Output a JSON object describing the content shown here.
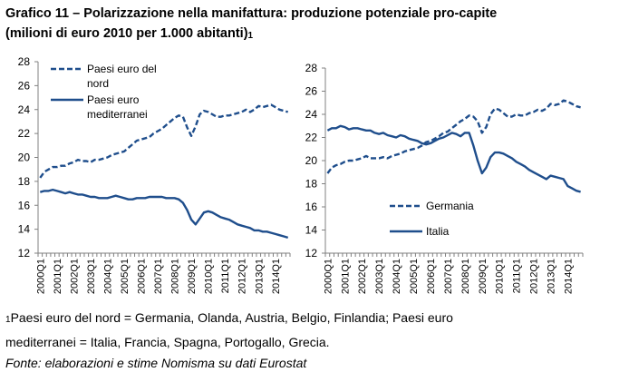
{
  "header": {
    "title_line1": "Grafico 11 – Polarizzazione nella manifattura: produzione potenziale pro-capite",
    "title_line2": "(milioni di euro 2010 per 1.000 abitanti)",
    "footnote_marker": "1"
  },
  "footnote": {
    "marker": "1",
    "line1": "Paesi euro del nord = Germania, Olanda, Austria, Belgio, Finlandia; Paesi euro",
    "line2": "mediterranei = Italia, Francia, Spagna, Portogallo, Grecia."
  },
  "source": "Fonte: elaborazioni e stime Nomisma su dati Eurostat",
  "colors": {
    "series": "#1f4e8c",
    "axis": "#808080",
    "text": "#000000"
  },
  "chart_data": [
    {
      "type": "line",
      "title": "",
      "xlabel": "",
      "ylabel": "",
      "ylim": [
        12,
        28
      ],
      "yticks": [
        12,
        14,
        16,
        18,
        20,
        22,
        24,
        26,
        28
      ],
      "grid": false,
      "legend_position": "top-left",
      "x_tick_labels": [
        "2000Q1",
        "2001Q1",
        "2002Q1",
        "2003Q1",
        "2004Q1",
        "2005Q1",
        "2006Q1",
        "2007Q1",
        "2008Q1",
        "2009Q1",
        "2010Q1",
        "2011Q1",
        "2012Q1",
        "2013Q1",
        "2014Q1"
      ],
      "x": [
        "2000Q1",
        "2000Q2",
        "2000Q3",
        "2000Q4",
        "2001Q1",
        "2001Q2",
        "2001Q3",
        "2001Q4",
        "2002Q1",
        "2002Q2",
        "2002Q3",
        "2002Q4",
        "2003Q1",
        "2003Q2",
        "2003Q3",
        "2003Q4",
        "2004Q1",
        "2004Q2",
        "2004Q3",
        "2004Q4",
        "2005Q1",
        "2005Q2",
        "2005Q3",
        "2005Q4",
        "2006Q1",
        "2006Q2",
        "2006Q3",
        "2006Q4",
        "2007Q1",
        "2007Q2",
        "2007Q3",
        "2007Q4",
        "2008Q1",
        "2008Q2",
        "2008Q3",
        "2008Q4",
        "2009Q1",
        "2009Q2",
        "2009Q3",
        "2009Q4",
        "2010Q1",
        "2010Q2",
        "2010Q3",
        "2010Q4",
        "2011Q1",
        "2011Q2",
        "2011Q3",
        "2011Q4",
        "2012Q1",
        "2012Q2",
        "2012Q3",
        "2012Q4",
        "2013Q1",
        "2013Q2",
        "2013Q3",
        "2013Q4",
        "2014Q1",
        "2014Q2",
        "2014Q3",
        "2014Q4"
      ],
      "series": [
        {
          "name": "Paesi euro del nord",
          "legend_lines": [
            "Paesi euro del",
            "nord"
          ],
          "style": "dashed",
          "values": [
            18.3,
            18.8,
            19.0,
            19.2,
            19.2,
            19.3,
            19.3,
            19.5,
            19.6,
            19.8,
            19.7,
            19.7,
            19.6,
            19.8,
            19.8,
            19.9,
            20.0,
            20.2,
            20.3,
            20.4,
            20.5,
            20.8,
            21.1,
            21.4,
            21.5,
            21.6,
            21.7,
            22.0,
            22.2,
            22.4,
            22.7,
            23.0,
            23.3,
            23.5,
            23.4,
            22.5,
            21.8,
            22.6,
            23.6,
            23.9,
            23.8,
            23.6,
            23.4,
            23.4,
            23.5,
            23.5,
            23.6,
            23.7,
            23.8,
            24.0,
            23.8,
            24.0,
            24.3,
            24.2,
            24.3,
            24.4,
            24.2,
            24.0,
            23.9,
            23.8
          ]
        },
        {
          "name": "Paesi euro mediterranei",
          "legend_lines": [
            "Paesi euro",
            "mediterranei"
          ],
          "style": "solid",
          "values": [
            17.1,
            17.2,
            17.2,
            17.3,
            17.2,
            17.1,
            17.0,
            17.1,
            17.0,
            16.9,
            16.9,
            16.8,
            16.7,
            16.7,
            16.6,
            16.6,
            16.6,
            16.7,
            16.8,
            16.7,
            16.6,
            16.5,
            16.5,
            16.6,
            16.6,
            16.6,
            16.7,
            16.7,
            16.7,
            16.7,
            16.6,
            16.6,
            16.6,
            16.5,
            16.2,
            15.6,
            14.8,
            14.4,
            14.9,
            15.4,
            15.5,
            15.4,
            15.2,
            15.0,
            14.9,
            14.8,
            14.6,
            14.4,
            14.3,
            14.2,
            14.1,
            13.9,
            13.9,
            13.8,
            13.8,
            13.7,
            13.6,
            13.5,
            13.4,
            13.3
          ]
        }
      ]
    },
    {
      "type": "line",
      "title": "",
      "xlabel": "",
      "ylabel": "",
      "ylim": [
        12,
        28
      ],
      "yticks": [
        12,
        14,
        16,
        18,
        20,
        22,
        24,
        26,
        28
      ],
      "grid": false,
      "legend_position": "bottom-right",
      "x_tick_labels": [
        "2000Q1",
        "2001Q1",
        "2002Q1",
        "2003Q1",
        "2004Q1",
        "2005Q1",
        "2006Q1",
        "2007Q1",
        "2008Q1",
        "2009Q1",
        "2010Q1",
        "2011Q1",
        "2012Q1",
        "2013Q1",
        "2014Q1"
      ],
      "x": [
        "2000Q1",
        "2000Q2",
        "2000Q3",
        "2000Q4",
        "2001Q1",
        "2001Q2",
        "2001Q3",
        "2001Q4",
        "2002Q1",
        "2002Q2",
        "2002Q3",
        "2002Q4",
        "2003Q1",
        "2003Q2",
        "2003Q3",
        "2003Q4",
        "2004Q1",
        "2004Q2",
        "2004Q3",
        "2004Q4",
        "2005Q1",
        "2005Q2",
        "2005Q3",
        "2005Q4",
        "2006Q1",
        "2006Q2",
        "2006Q3",
        "2006Q4",
        "2007Q1",
        "2007Q2",
        "2007Q3",
        "2007Q4",
        "2008Q1",
        "2008Q2",
        "2008Q3",
        "2008Q4",
        "2009Q1",
        "2009Q2",
        "2009Q3",
        "2009Q4",
        "2010Q1",
        "2010Q2",
        "2010Q3",
        "2010Q4",
        "2011Q1",
        "2011Q2",
        "2011Q3",
        "2011Q4",
        "2012Q1",
        "2012Q2",
        "2012Q3",
        "2012Q4",
        "2013Q1",
        "2013Q2",
        "2013Q3",
        "2013Q4",
        "2014Q1",
        "2014Q2",
        "2014Q3",
        "2014Q4"
      ],
      "series": [
        {
          "name": "Germania",
          "legend_lines": [
            "Germania"
          ],
          "style": "dashed",
          "values": [
            18.9,
            19.4,
            19.6,
            19.7,
            19.9,
            20.0,
            20.0,
            20.1,
            20.2,
            20.4,
            20.2,
            20.2,
            20.2,
            20.3,
            20.2,
            20.4,
            20.5,
            20.6,
            20.8,
            20.9,
            21.0,
            21.1,
            21.3,
            21.6,
            21.7,
            21.9,
            22.1,
            22.4,
            22.5,
            22.8,
            23.1,
            23.4,
            23.6,
            23.9,
            23.8,
            23.4,
            22.4,
            22.9,
            24.0,
            24.5,
            24.4,
            24.1,
            23.8,
            23.8,
            24.0,
            23.9,
            23.9,
            24.1,
            24.2,
            24.4,
            24.3,
            24.5,
            24.9,
            24.8,
            24.9,
            25.2,
            25.1,
            24.9,
            24.7,
            24.6
          ]
        },
        {
          "name": "Italia",
          "legend_lines": [
            "Italia"
          ],
          "style": "solid",
          "values": [
            22.6,
            22.8,
            22.8,
            23.0,
            22.9,
            22.7,
            22.8,
            22.8,
            22.7,
            22.6,
            22.6,
            22.4,
            22.3,
            22.4,
            22.2,
            22.1,
            22.0,
            22.2,
            22.1,
            21.9,
            21.8,
            21.7,
            21.5,
            21.4,
            21.5,
            21.7,
            21.9,
            22.0,
            22.2,
            22.4,
            22.3,
            22.1,
            22.4,
            22.4,
            21.3,
            20.0,
            18.9,
            19.4,
            20.3,
            20.7,
            20.7,
            20.6,
            20.4,
            20.2,
            19.9,
            19.7,
            19.5,
            19.2,
            19.0,
            18.8,
            18.6,
            18.4,
            18.7,
            18.6,
            18.5,
            18.4,
            17.8,
            17.6,
            17.4,
            17.3
          ]
        }
      ]
    }
  ]
}
